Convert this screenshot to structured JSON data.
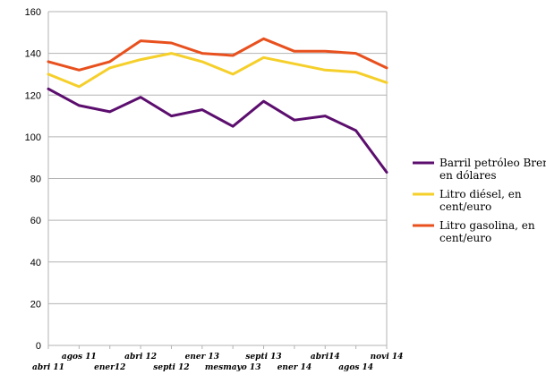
{
  "chart_data": {
    "type": "line",
    "categories": [
      "abri 11",
      "agos 11",
      "ener12",
      "abri 12",
      "septi 12",
      "ener 13",
      "mesmayo 13",
      "septi 13",
      "ener 14",
      "abri14",
      "agos 14",
      "novi 14"
    ],
    "y_ticks": [
      "0",
      "20",
      "40",
      "60",
      "80",
      "100",
      "120",
      "140",
      "160"
    ],
    "ylim": [
      0,
      160
    ],
    "grid": "horizontal",
    "legend_position": "right",
    "series": [
      {
        "name_lines": [
          "Barril petróleo Brent,",
          "en dólares"
        ],
        "color": "#5c0e6e",
        "values": [
          123,
          115,
          112,
          119,
          110,
          113,
          105,
          117,
          108,
          110,
          103,
          83
        ]
      },
      {
        "name_lines": [
          "Litro diésel, en",
          "cent/euro"
        ],
        "color": "#f5cf2a",
        "values": [
          130,
          124,
          133,
          137,
          140,
          136,
          130,
          138,
          135,
          132,
          131,
          126
        ]
      },
      {
        "name_lines": [
          "Litro gasolina, en",
          "cent/euro"
        ],
        "color": "#e8501e",
        "values": [
          136,
          132,
          136,
          146,
          145,
          140,
          139,
          147,
          141,
          141,
          140,
          133
        ]
      }
    ]
  }
}
